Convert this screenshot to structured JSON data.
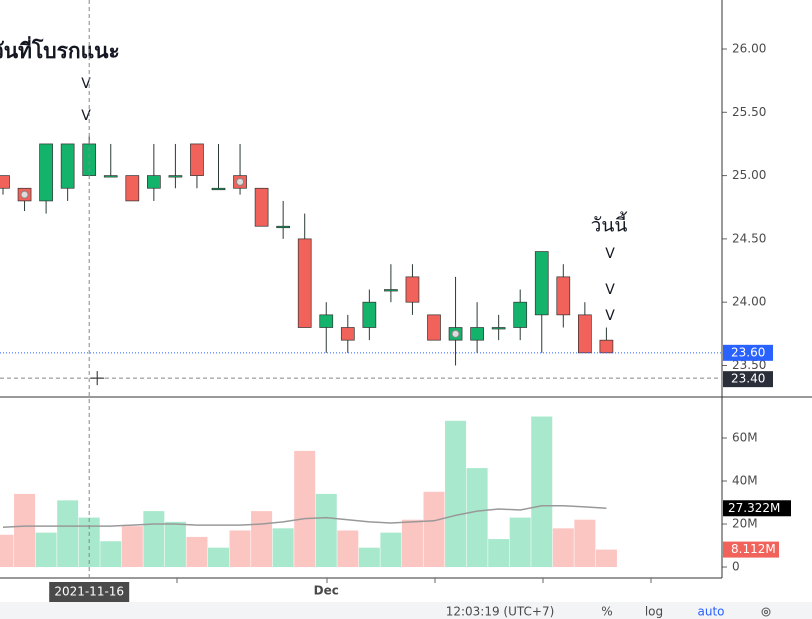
{
  "chart_data": {
    "type": "candlestick",
    "categories": [
      null,
      null,
      null,
      null,
      null,
      null,
      null,
      null,
      null,
      null,
      null,
      null,
      null,
      null,
      null,
      "Dec",
      null,
      null,
      null,
      null,
      null,
      null,
      null,
      null,
      null,
      null,
      null,
      null,
      null
    ],
    "open": [
      25.0,
      24.9,
      24.8,
      24.9,
      25.0,
      25.0,
      25.0,
      24.9,
      25.0,
      25.25,
      24.9,
      25.0,
      24.9,
      24.6,
      24.5,
      23.8,
      23.8,
      23.8,
      24.1,
      24.2,
      23.9,
      23.7,
      23.7,
      23.8,
      23.8,
      23.9,
      24.2,
      23.9,
      23.7
    ],
    "high": [
      25.0,
      24.9,
      25.25,
      25.25,
      25.31,
      25.25,
      25.0,
      25.25,
      25.25,
      25.25,
      25.25,
      25.25,
      24.9,
      24.8,
      24.7,
      24.0,
      23.9,
      24.1,
      24.3,
      24.3,
      23.9,
      24.2,
      24.0,
      23.9,
      24.1,
      24.4,
      24.3,
      24.0,
      23.8
    ],
    "low": [
      24.85,
      24.72,
      24.7,
      24.8,
      25.0,
      25.0,
      24.8,
      24.8,
      24.9,
      24.9,
      24.9,
      24.85,
      24.6,
      24.5,
      23.8,
      23.6,
      23.6,
      23.7,
      24.0,
      23.9,
      23.7,
      23.5,
      23.6,
      23.7,
      23.7,
      23.6,
      23.8,
      23.6,
      23.6
    ],
    "close": [
      24.9,
      24.8,
      25.25,
      25.25,
      25.25,
      25.0,
      24.8,
      25.0,
      25.0,
      25.0,
      24.9,
      24.9,
      24.6,
      24.6,
      23.8,
      23.9,
      23.7,
      24.0,
      24.1,
      24.0,
      23.7,
      23.8,
      23.8,
      23.8,
      24.0,
      24.4,
      23.9,
      23.6,
      23.6
    ],
    "up_color": "#13b36b",
    "down_color": "#f0625a",
    "ylim": [
      23.259,
      26.387
    ],
    "yticks": [
      {
        "value": 23.5,
        "label": "23.50"
      },
      {
        "value": 24.0,
        "label": "24.00"
      },
      {
        "value": 24.5,
        "label": "24.50"
      },
      {
        "value": 25.0,
        "label": "25.00"
      },
      {
        "value": 25.5,
        "label": "25.50"
      },
      {
        "value": 26.0,
        "label": "26.00"
      }
    ],
    "last_price": {
      "value": 23.6,
      "label": "23.60"
    },
    "crosshair": {
      "x_label": "2021-11-16",
      "y": {
        "value": 23.4,
        "label": "23.40"
      }
    },
    "volume": {
      "values": [
        15,
        34,
        16,
        31,
        23,
        12,
        19,
        26,
        21,
        14,
        9,
        17,
        26,
        18,
        54,
        34,
        17,
        9,
        16,
        22,
        35,
        68,
        46,
        13,
        23,
        70,
        18,
        22,
        8.112
      ],
      "value_labels": "8.112M",
      "ma": [
        18.5,
        19,
        19,
        19,
        19,
        19,
        19.5,
        20,
        20,
        19.5,
        19.5,
        19.5,
        20,
        21,
        22.5,
        23,
        22,
        21,
        20.5,
        21,
        21.5,
        24,
        26,
        27,
        26.5,
        28.5,
        28.5,
        28,
        27.322
      ],
      "ma_label": "27.322M",
      "up_color": "#a8e8cd",
      "down_color": "#fbc5c2",
      "ma_color": "#999999",
      "ylim": [
        -5.1,
        78.6
      ],
      "yticks": [
        0,
        {
          "value": 20,
          "label": "20M"
        },
        {
          "value": 40,
          "label": "40M"
        },
        {
          "value": 60,
          "label": "60M"
        }
      ]
    },
    "annotations": {
      "left": "วันที่โบรกแนะ",
      "right": "วันนี้",
      "mark": "V"
    },
    "status_bar": {
      "time": "12:03:19 (UTC+7)",
      "percent": "%",
      "log": "log",
      "auto": "auto"
    }
  }
}
